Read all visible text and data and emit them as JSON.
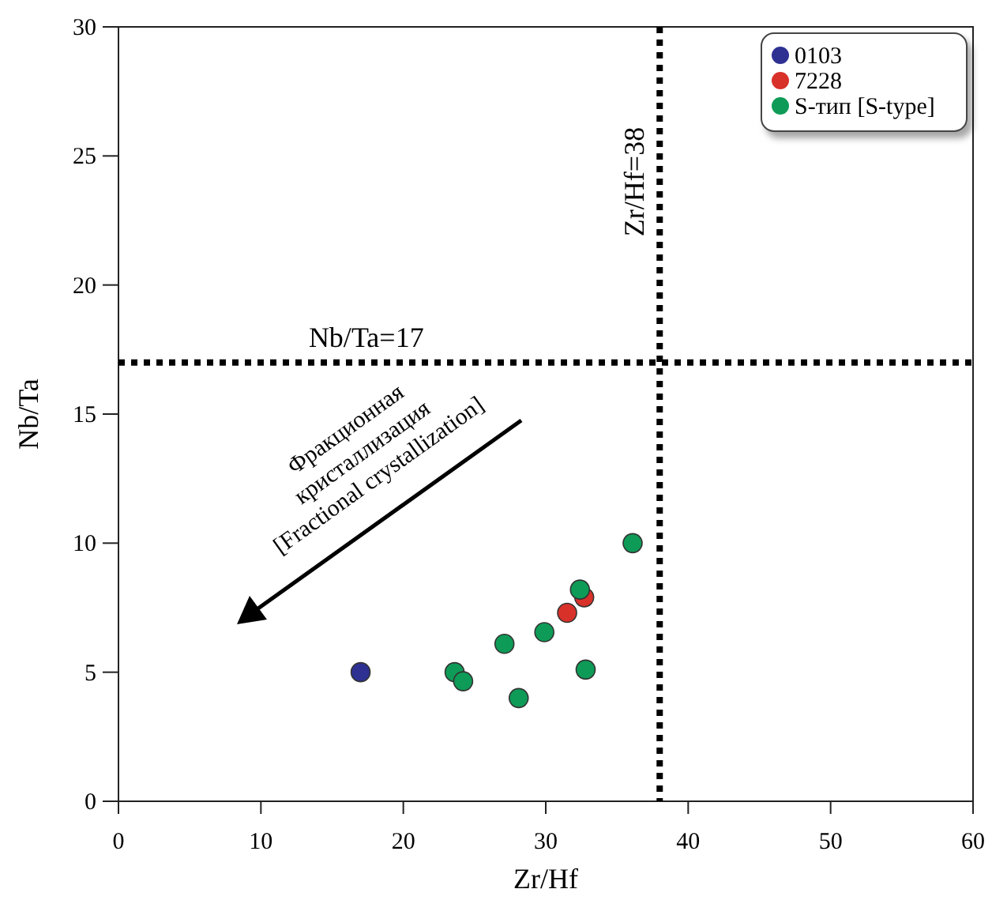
{
  "chart_data": {
    "type": "scatter",
    "xlabel": "Zr/Hf",
    "ylabel": "Nb/Ta",
    "xlim": [
      0,
      60
    ],
    "xticks": [
      0,
      10,
      20,
      30,
      40,
      50,
      60
    ],
    "ylim": [
      0,
      30
    ],
    "yticks": [
      0,
      5,
      10,
      15,
      20,
      25,
      30
    ],
    "grid": false,
    "legend": "top right",
    "marker": "circle",
    "series": [
      {
        "name": "0103",
        "color": "#2e3192",
        "x": [
          17
        ],
        "values": [
          5
        ]
      },
      {
        "name": "7228",
        "color": "#d8312a",
        "x": [
          31.5,
          32.7
        ],
        "values": [
          7.3,
          7.9
        ]
      },
      {
        "name": "S-тип [S-type]",
        "color": "#0e9b57",
        "x": [
          23.6,
          24.2,
          27.1,
          28.1,
          29.9,
          32.4,
          32.8,
          36.1
        ],
        "values": [
          5.0,
          4.65,
          6.1,
          4.0,
          6.55,
          8.2,
          5.1,
          10.0
        ]
      }
    ],
    "ref_lines": [
      {
        "axis": "y",
        "value": 17,
        "label": "Nb/Ta=17",
        "line_style": "dotted"
      },
      {
        "axis": "x",
        "value": 38,
        "label": "Zr/Hf=38",
        "line_style": "dotted"
      }
    ],
    "annotations": [
      "Фракционная\nкристаллизация\n[Fractional crystallization]"
    ]
  }
}
